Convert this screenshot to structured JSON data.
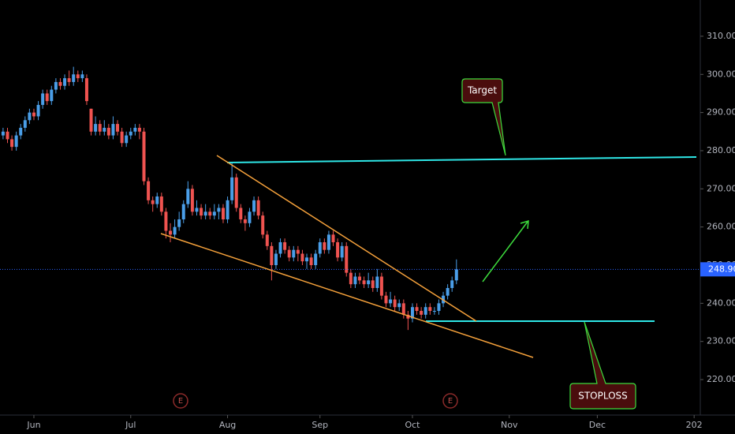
{
  "chart_data": {
    "type": "candlestick",
    "x": [
      -7,
      -6,
      -5,
      -4,
      -3,
      -2,
      -1,
      0,
      1,
      2,
      3,
      4,
      5,
      6,
      7,
      8,
      9,
      10,
      11,
      12,
      13,
      14,
      15,
      16,
      17,
      18,
      19,
      20,
      21,
      22,
      23,
      24,
      25,
      26,
      27,
      28,
      29,
      30,
      31,
      32,
      33,
      34,
      35,
      36,
      37,
      38,
      39,
      40,
      41,
      42,
      43,
      44,
      45,
      46,
      47,
      48,
      49,
      50,
      51,
      52,
      53,
      54,
      55,
      56,
      57,
      58,
      59,
      60,
      61,
      62,
      63,
      64,
      65,
      66,
      67,
      68,
      69,
      70,
      71,
      72,
      73,
      74,
      75,
      76,
      77,
      78,
      79,
      80,
      81,
      82,
      83,
      84,
      85,
      86,
      87,
      88,
      89,
      90,
      91,
      92,
      93,
      94,
      95,
      96
    ],
    "open": [
      284,
      285,
      283,
      281,
      284,
      286,
      288,
      290,
      289,
      292,
      295,
      293,
      296,
      298,
      297,
      299,
      298,
      300,
      299,
      299,
      291,
      285,
      287,
      285,
      286,
      284,
      287,
      285,
      282,
      284,
      285,
      286,
      285,
      272,
      267,
      266,
      268,
      264,
      259,
      258,
      260,
      262,
      266,
      270,
      264,
      265,
      263,
      264,
      263,
      264,
      265,
      262,
      267,
      273,
      265,
      262,
      261,
      264,
      267,
      263,
      258,
      255,
      250,
      253,
      256,
      254,
      252,
      254,
      253,
      251,
      252,
      250,
      253,
      256,
      254,
      258,
      256,
      252,
      255,
      248,
      245,
      247,
      246,
      245,
      246,
      244,
      247,
      242,
      240,
      241,
      239,
      240,
      237,
      236,
      239,
      238,
      237,
      239,
      238,
      238,
      240,
      242,
      244,
      246
    ],
    "high": [
      286,
      286,
      284,
      285,
      287,
      289,
      291,
      291,
      293,
      296,
      296,
      297,
      299,
      299,
      300,
      301,
      302,
      301,
      301,
      300,
      291,
      289,
      288,
      288,
      287,
      289,
      288,
      286,
      285,
      286,
      287,
      287,
      286,
      273,
      268,
      269,
      269,
      265,
      261,
      262,
      264,
      267,
      272,
      271,
      267,
      266,
      266,
      265,
      266,
      266,
      266,
      268,
      277,
      274,
      266,
      263,
      265,
      268,
      268,
      264,
      259,
      256,
      254,
      257,
      257,
      255,
      255,
      255,
      254,
      253,
      253,
      254,
      257,
      257,
      259,
      259,
      257,
      256,
      256,
      249,
      248,
      248,
      247,
      248,
      247,
      249,
      248,
      243,
      243,
      242,
      241,
      241,
      238,
      240,
      240,
      239,
      240,
      240,
      239,
      241,
      243,
      245,
      247,
      251.5
    ],
    "low": [
      283,
      282,
      280,
      280,
      283,
      285,
      287,
      288,
      288,
      291,
      292,
      292,
      295,
      296,
      296,
      297,
      297,
      298,
      298,
      292,
      284,
      284,
      284,
      284,
      283,
      283,
      284,
      281,
      281,
      283,
      284,
      283,
      271,
      266,
      264,
      265,
      263,
      257,
      256,
      257,
      259,
      261,
      265,
      263,
      263,
      262,
      262,
      262,
      262,
      262,
      261,
      261,
      266,
      264,
      261,
      259,
      260,
      263,
      262,
      257,
      254,
      246,
      249,
      252,
      253,
      251,
      251,
      251,
      250,
      249,
      249,
      249,
      252,
      253,
      253,
      255,
      251,
      251,
      247,
      244,
      244,
      245,
      244,
      244,
      243,
      243,
      241,
      239,
      239,
      238,
      238,
      236,
      233,
      235,
      237,
      236,
      236,
      237,
      237,
      237,
      239,
      241,
      243,
      245
    ],
    "close": [
      285,
      283,
      281,
      284,
      286,
      288,
      290,
      289,
      292,
      295,
      293,
      296,
      298,
      297,
      299,
      298,
      300,
      299,
      300,
      293,
      285,
      287,
      285,
      286,
      284,
      287,
      285,
      282,
      284,
      285,
      286,
      285,
      272,
      267,
      266,
      268,
      264,
      259,
      258,
      260,
      262,
      266,
      270,
      264,
      265,
      263,
      264,
      263,
      264,
      265,
      262,
      267,
      273,
      265,
      262,
      261,
      264,
      267,
      263,
      258,
      255,
      250,
      253,
      256,
      254,
      252,
      254,
      253,
      251,
      252,
      250,
      253,
      256,
      254,
      258,
      256,
      252,
      255,
      248,
      245,
      247,
      246,
      245,
      246,
      244,
      247,
      242,
      240,
      241,
      239,
      240,
      237,
      236,
      239,
      238,
      237,
      239,
      238,
      238,
      240,
      242,
      244,
      246,
      248.9
    ],
    "up_color": "#4a9ee8",
    "down_color": "#ef5350",
    "xlim": [
      -7.7,
      151.4
    ],
    "xticks": [
      {
        "value": 0,
        "label": "Jun"
      },
      {
        "value": 22,
        "label": "Jul"
      },
      {
        "value": 44,
        "label": "Aug"
      },
      {
        "value": 65,
        "label": "Sep"
      },
      {
        "value": 86,
        "label": "Oct"
      },
      {
        "value": 108,
        "label": "Nov"
      },
      {
        "value": 128,
        "label": "Dec"
      },
      {
        "value": 150,
        "label": "202"
      }
    ],
    "ylim": [
      210.7,
      319.5
    ],
    "yticks": [
      {
        "value": 220,
        "label": "220.00"
      },
      {
        "value": 230,
        "label": "230.00"
      },
      {
        "value": 240,
        "label": "240.00"
      },
      {
        "value": 250,
        "label": "250.00"
      },
      {
        "value": 260,
        "label": "260.00"
      },
      {
        "value": 270,
        "label": "270.00"
      },
      {
        "value": 280,
        "label": "280.00"
      },
      {
        "value": 290,
        "label": "290.00"
      },
      {
        "value": 300,
        "label": "300.00"
      },
      {
        "value": 310,
        "label": "310.00"
      }
    ],
    "last_price": {
      "value": 248.9,
      "label": "248.90"
    },
    "annotations": {
      "target": "Target",
      "stoploss": "STOPLOSS",
      "earnings": [
        "E",
        "E"
      ]
    }
  }
}
